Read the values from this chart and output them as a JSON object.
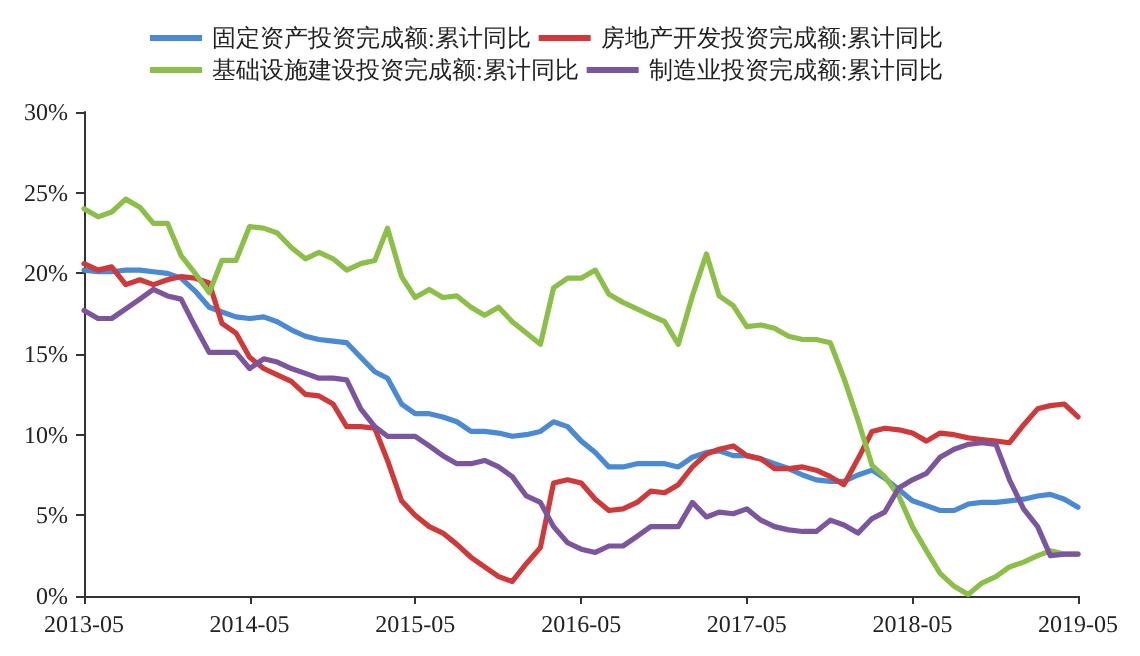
{
  "chart_data": {
    "type": "line",
    "legend": "top",
    "grid": false,
    "marker": "none",
    "line_style": "solid",
    "x": [
      "2013-05",
      "2013-06",
      "2013-07",
      "2013-08",
      "2013-09",
      "2013-10",
      "2013-11",
      "2013-12",
      "2014-01",
      "2014-02",
      "2014-03",
      "2014-04",
      "2014-05",
      "2014-06",
      "2014-07",
      "2014-08",
      "2014-09",
      "2014-10",
      "2014-11",
      "2014-12",
      "2015-01",
      "2015-02",
      "2015-03",
      "2015-04",
      "2015-05",
      "2015-06",
      "2015-07",
      "2015-08",
      "2015-09",
      "2015-10",
      "2015-11",
      "2015-12",
      "2016-01",
      "2016-02",
      "2016-03",
      "2016-04",
      "2016-05",
      "2016-06",
      "2016-07",
      "2016-08",
      "2016-09",
      "2016-10",
      "2016-11",
      "2016-12",
      "2017-01",
      "2017-02",
      "2017-03",
      "2017-04",
      "2017-05",
      "2017-06",
      "2017-07",
      "2017-08",
      "2017-09",
      "2017-10",
      "2017-11",
      "2017-12",
      "2018-01",
      "2018-02",
      "2018-03",
      "2018-04",
      "2018-05",
      "2018-06",
      "2018-07",
      "2018-08",
      "2018-09",
      "2018-10",
      "2018-11",
      "2018-12",
      "2019-01",
      "2019-02",
      "2019-03",
      "2019-04",
      "2019-05"
    ],
    "series": [
      {
        "name": "固定资产投资完成额:累计同比",
        "color": "#4a89d4",
        "values": [
          20.2,
          20.1,
          20.1,
          20.2,
          20.2,
          20.1,
          20.0,
          19.7,
          18.9,
          17.9,
          17.6,
          17.3,
          17.2,
          17.3,
          17.0,
          16.5,
          16.1,
          15.9,
          15.8,
          15.7,
          14.8,
          13.9,
          13.5,
          11.9,
          11.3,
          11.3,
          11.1,
          10.8,
          10.2,
          10.2,
          10.1,
          9.9,
          10.0,
          10.2,
          10.8,
          10.5,
          9.6,
          8.9,
          8.0,
          8.0,
          8.2,
          8.2,
          8.2,
          8.0,
          8.6,
          8.9,
          9.0,
          8.7,
          8.7,
          8.5,
          8.2,
          7.9,
          7.5,
          7.2,
          7.1,
          7.1,
          7.5,
          7.8,
          7.3,
          6.6,
          5.9,
          5.6,
          5.3,
          5.3,
          5.7,
          5.8,
          5.8,
          5.9,
          6.0,
          6.2,
          6.3,
          6.0,
          5.5
        ]
      },
      {
        "name": "房地产开发投资完成额:累计同比",
        "color": "#d0393a",
        "values": [
          20.6,
          20.2,
          20.4,
          19.3,
          19.6,
          19.3,
          19.6,
          19.8,
          19.7,
          19.4,
          16.9,
          16.3,
          14.8,
          14.1,
          13.7,
          13.3,
          12.5,
          12.4,
          11.9,
          10.5,
          10.5,
          10.4,
          8.4,
          5.9,
          5.0,
          4.3,
          3.9,
          3.2,
          2.4,
          1.8,
          1.2,
          0.9,
          2.0,
          3.0,
          7.0,
          7.2,
          7.0,
          6.0,
          5.3,
          5.4,
          5.8,
          6.5,
          6.4,
          6.9,
          8.0,
          8.8,
          9.1,
          9.3,
          8.7,
          8.5,
          7.9,
          7.9,
          8.0,
          7.8,
          7.4,
          6.9,
          8.5,
          10.2,
          10.4,
          10.3,
          10.1,
          9.6,
          10.1,
          10.0,
          9.8,
          9.7,
          9.6,
          9.5,
          10.6,
          11.6,
          11.8,
          11.9,
          11.1
        ]
      },
      {
        "name": "基础设施建设投资完成额:累计同比",
        "color": "#8cbf47",
        "values": [
          24.0,
          23.5,
          23.8,
          24.6,
          24.1,
          23.1,
          23.1,
          21.1,
          20.0,
          18.8,
          20.8,
          20.8,
          22.9,
          22.8,
          22.5,
          21.6,
          20.9,
          21.3,
          20.9,
          20.2,
          20.6,
          20.8,
          22.8,
          19.8,
          18.5,
          19.0,
          18.5,
          18.6,
          17.9,
          17.4,
          17.9,
          17.0,
          16.3,
          15.6,
          19.1,
          19.7,
          19.7,
          20.2,
          18.7,
          18.2,
          17.8,
          17.4,
          17.0,
          15.6,
          18.6,
          21.2,
          18.6,
          18.0,
          16.7,
          16.8,
          16.6,
          16.1,
          15.9,
          15.9,
          15.7,
          13.5,
          10.9,
          8.1,
          7.4,
          6.2,
          4.3,
          2.8,
          1.4,
          0.6,
          0.1,
          0.8,
          1.2,
          1.8,
          2.1,
          2.5,
          2.8,
          2.6,
          2.6
        ]
      },
      {
        "name": "制造业投资完成额:累计同比",
        "color": "#7b559e",
        "values": [
          17.7,
          17.2,
          17.2,
          17.8,
          18.4,
          19.0,
          18.6,
          18.4,
          16.7,
          15.1,
          15.1,
          15.1,
          14.1,
          14.7,
          14.5,
          14.1,
          13.8,
          13.5,
          13.5,
          13.4,
          11.6,
          10.5,
          9.9,
          9.9,
          9.9,
          9.3,
          8.7,
          8.2,
          8.2,
          8.4,
          8.0,
          7.4,
          6.2,
          5.8,
          4.3,
          3.3,
          2.9,
          2.7,
          3.1,
          3.1,
          3.7,
          4.3,
          4.3,
          4.3,
          5.8,
          4.9,
          5.2,
          5.1,
          5.4,
          4.7,
          4.3,
          4.1,
          4.0,
          4.0,
          4.7,
          4.4,
          3.9,
          4.8,
          5.2,
          6.7,
          7.2,
          7.6,
          8.6,
          9.1,
          9.4,
          9.5,
          9.4,
          7.2,
          5.4,
          4.3,
          2.5,
          2.6,
          2.6
        ]
      }
    ],
    "xlim": [
      "2013-05",
      "2019-05"
    ],
    "xticks": [
      "2013-05",
      "2014-05",
      "2015-05",
      "2016-05",
      "2017-05",
      "2018-05",
      "2019-05"
    ],
    "ylim": [
      0,
      30
    ],
    "yticks": [
      {
        "value": 0,
        "label": "0%"
      },
      {
        "value": 5,
        "label": "5%"
      },
      {
        "value": 10,
        "label": "10%"
      },
      {
        "value": 15,
        "label": "15%"
      },
      {
        "value": 20,
        "label": "20%"
      },
      {
        "value": 25,
        "label": "25%"
      },
      {
        "value": 30,
        "label": "30%"
      }
    ]
  }
}
